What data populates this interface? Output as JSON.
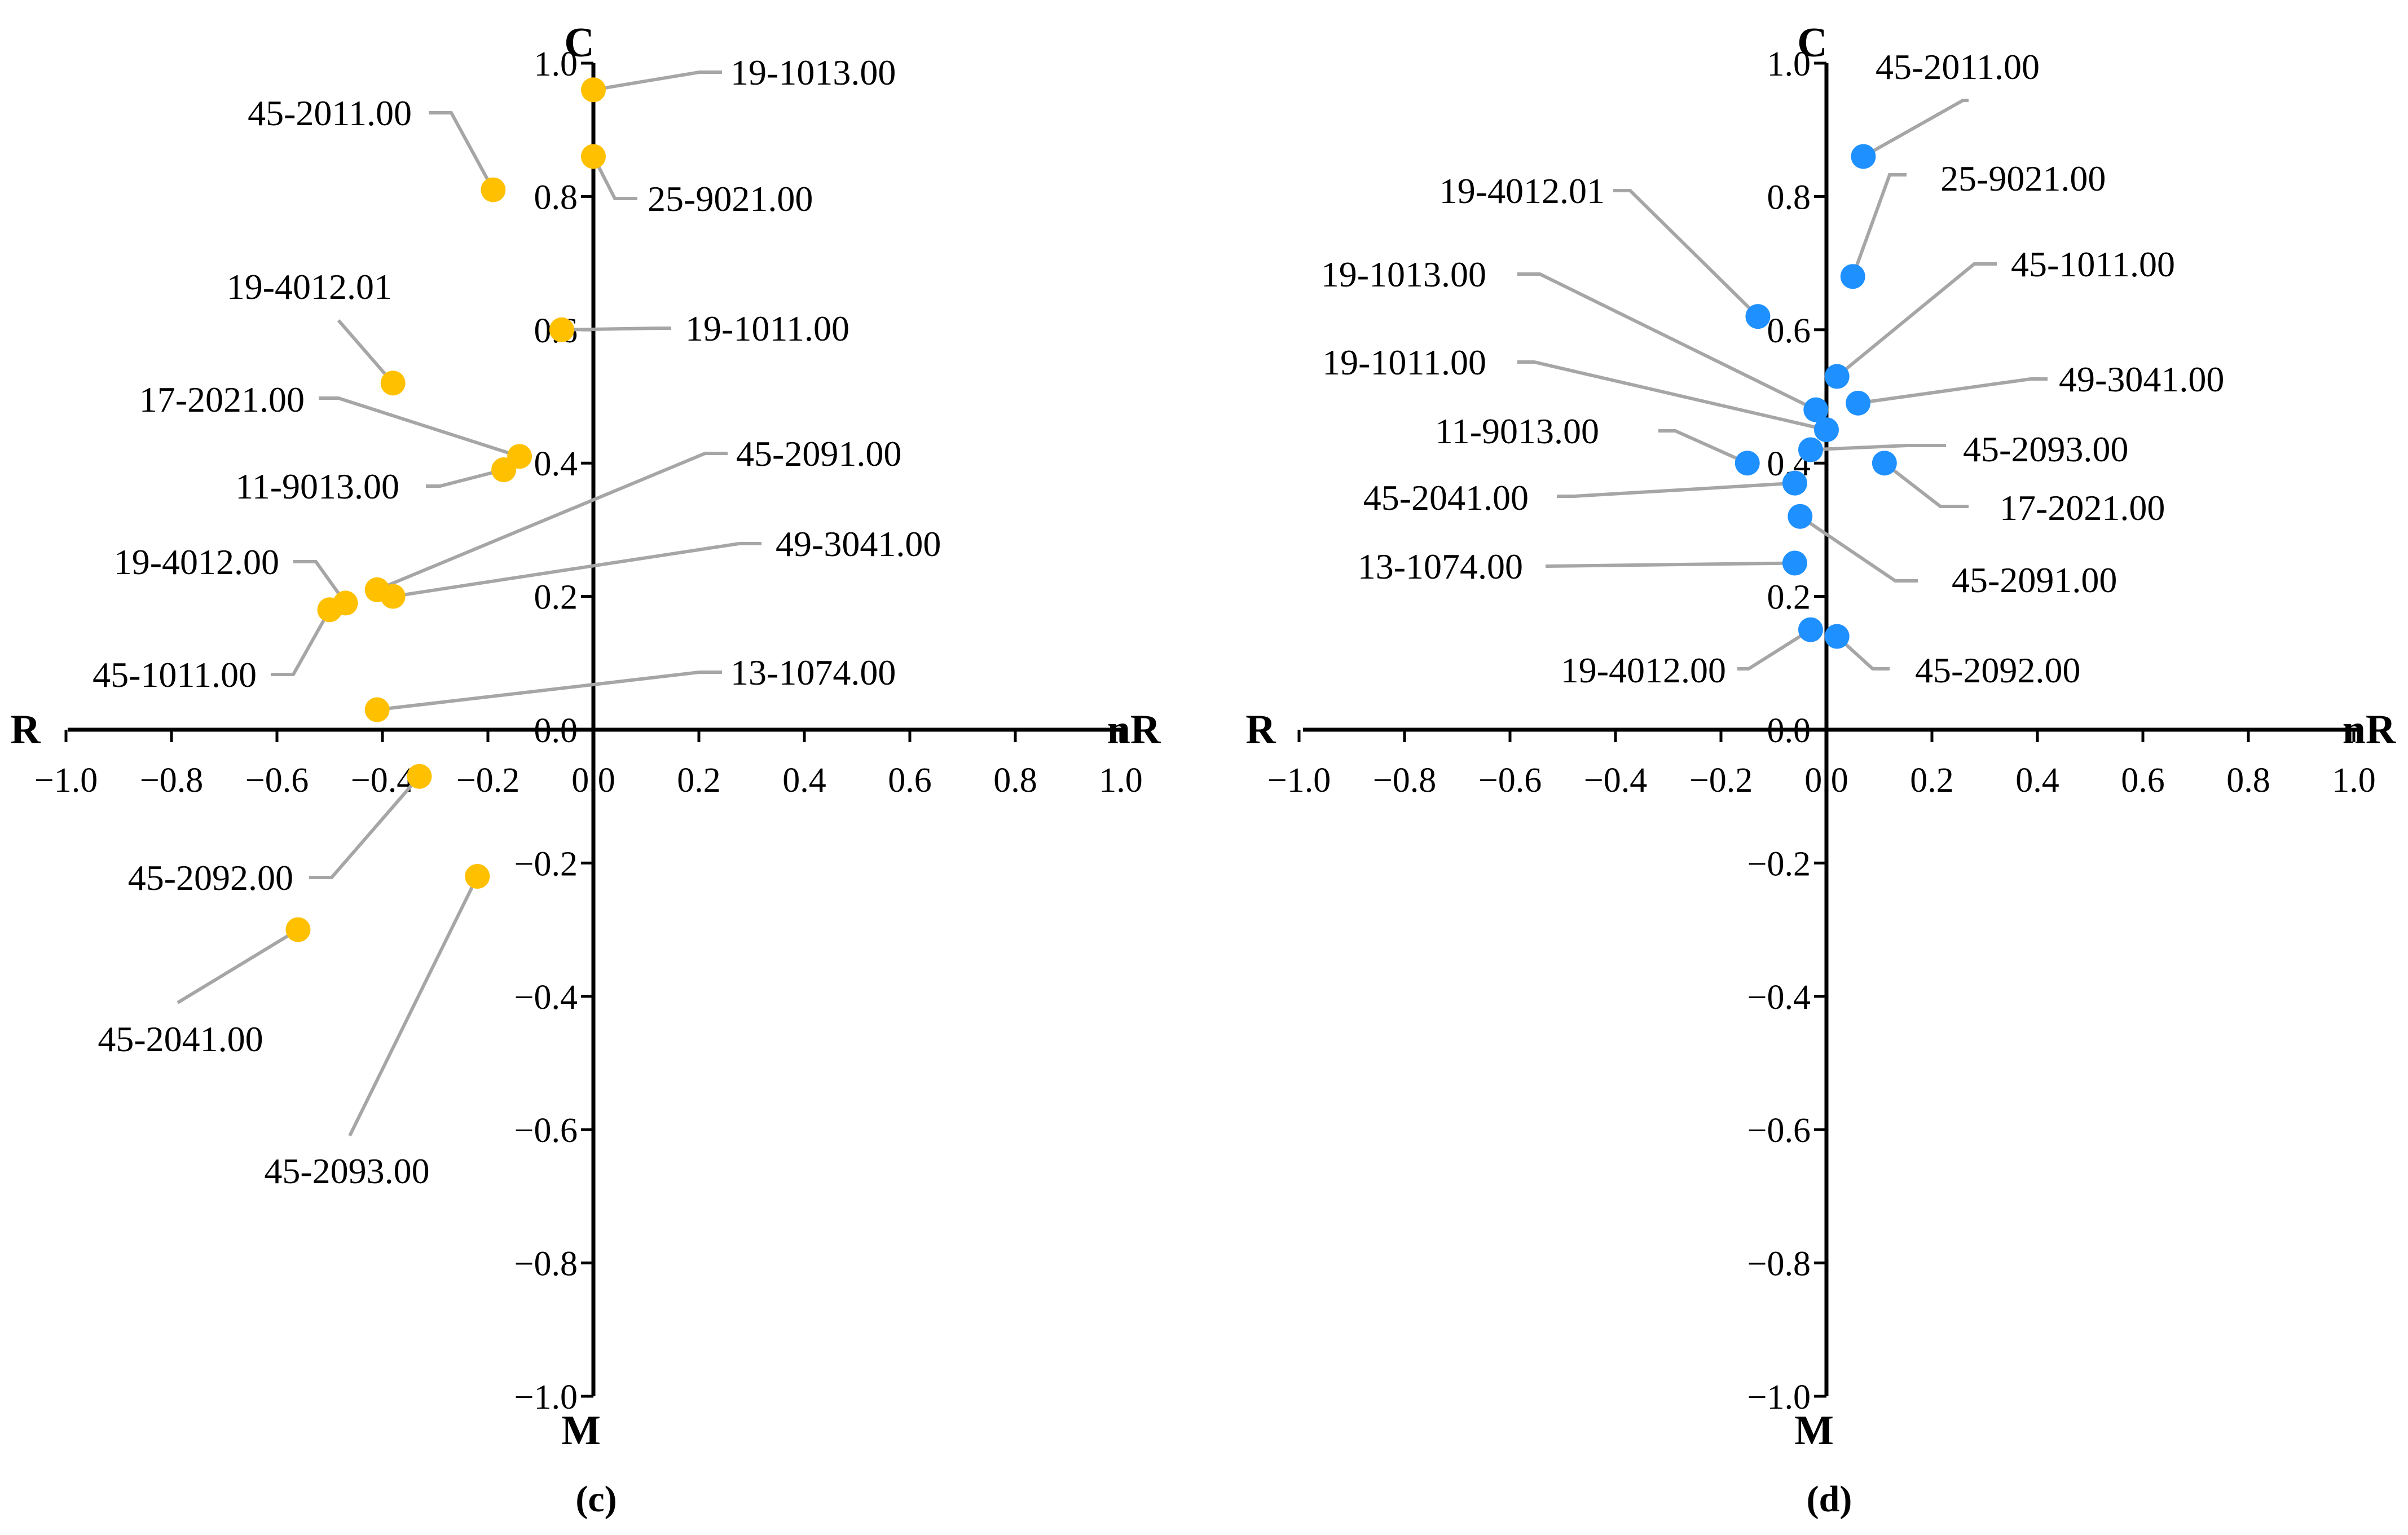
{
  "chart_data": [
    {
      "type": "scatter",
      "panel_label": "(c)",
      "color": "#FFC000",
      "xlim": [
        -1.0,
        1.0
      ],
      "ylim": [
        -1.0,
        1.0
      ],
      "x_ticks": [
        "−1.0",
        "−0.8",
        "−0.6",
        "−0.4",
        "−0.2",
        "0.0",
        "0.2",
        "0.4",
        "0.6",
        "0.8",
        "1.0"
      ],
      "y_ticks": [
        "1.0",
        "0.8",
        "0.6",
        "0.4",
        "0.2",
        "0.0",
        "−0.2",
        "−0.4",
        "−0.6",
        "−0.8",
        "−1.0"
      ],
      "axis_labels": {
        "top": "C",
        "bottom": "M",
        "left": "R",
        "right": "nR"
      },
      "grid": false,
      "points": [
        {
          "label": "19-1013.00",
          "x": 0.0,
          "y": 0.96
        },
        {
          "label": "25-9021.00",
          "x": 0.0,
          "y": 0.86
        },
        {
          "label": "45-2011.00",
          "x": -0.19,
          "y": 0.81
        },
        {
          "label": "19-1011.00",
          "x": -0.06,
          "y": 0.6
        },
        {
          "label": "19-4012.01",
          "x": -0.38,
          "y": 0.52
        },
        {
          "label": "17-2021.00",
          "x": -0.14,
          "y": 0.41
        },
        {
          "label": "11-9013.00",
          "x": -0.17,
          "y": 0.39
        },
        {
          "label": "45-2091.00",
          "x": -0.41,
          "y": 0.21
        },
        {
          "label": "49-3041.00",
          "x": -0.38,
          "y": 0.2
        },
        {
          "label": "19-4012.00",
          "x": -0.47,
          "y": 0.19
        },
        {
          "label": "45-1011.00",
          "x": -0.5,
          "y": 0.18
        },
        {
          "label": "13-1074.00",
          "x": -0.41,
          "y": 0.03
        },
        {
          "label": "45-2092.00",
          "x": -0.33,
          "y": -0.07
        },
        {
          "label": "45-2093.00",
          "x": -0.22,
          "y": -0.22
        },
        {
          "label": "45-2041.00",
          "x": -0.56,
          "y": -0.3
        }
      ]
    },
    {
      "type": "scatter",
      "panel_label": "(d)",
      "color": "#1E90FF",
      "xlim": [
        -1.0,
        1.0
      ],
      "ylim": [
        -1.0,
        1.0
      ],
      "x_ticks": [
        "−1.0",
        "−0.8",
        "−0.6",
        "−0.4",
        "−0.2",
        "0.0",
        "0.2",
        "0.4",
        "0.6",
        "0.8",
        "1.0"
      ],
      "y_ticks": [
        "1.0",
        "0.8",
        "0.6",
        "0.4",
        "0.2",
        "0.0",
        "−0.2",
        "−0.4",
        "−0.6",
        "−0.8",
        "−1.0"
      ],
      "axis_labels": {
        "top": "C",
        "bottom": "M",
        "left": "R",
        "right": "nR"
      },
      "grid": false,
      "points": [
        {
          "label": "45-2011.00",
          "x": 0.07,
          "y": 0.86
        },
        {
          "label": "25-9021.00",
          "x": 0.05,
          "y": 0.68
        },
        {
          "label": "19-4012.01",
          "x": -0.13,
          "y": 0.62
        },
        {
          "label": "45-1011.00",
          "x": 0.02,
          "y": 0.53
        },
        {
          "label": "49-3041.00",
          "x": 0.06,
          "y": 0.49
        },
        {
          "label": "19-1013.00",
          "x": -0.02,
          "y": 0.48
        },
        {
          "label": "19-1011.00",
          "x": 0.0,
          "y": 0.45
        },
        {
          "label": "45-2093.00",
          "x": -0.03,
          "y": 0.42
        },
        {
          "label": "11-9013.00",
          "x": -0.15,
          "y": 0.4
        },
        {
          "label": "17-2021.00",
          "x": 0.11,
          "y": 0.4
        },
        {
          "label": "45-2041.00",
          "x": -0.06,
          "y": 0.37
        },
        {
          "label": "45-2091.00",
          "x": -0.05,
          "y": 0.32
        },
        {
          "label": "13-1074.00",
          "x": -0.06,
          "y": 0.25
        },
        {
          "label": "19-4012.00",
          "x": -0.03,
          "y": 0.15
        },
        {
          "label": "45-2092.00",
          "x": 0.02,
          "y": 0.14
        }
      ]
    }
  ]
}
